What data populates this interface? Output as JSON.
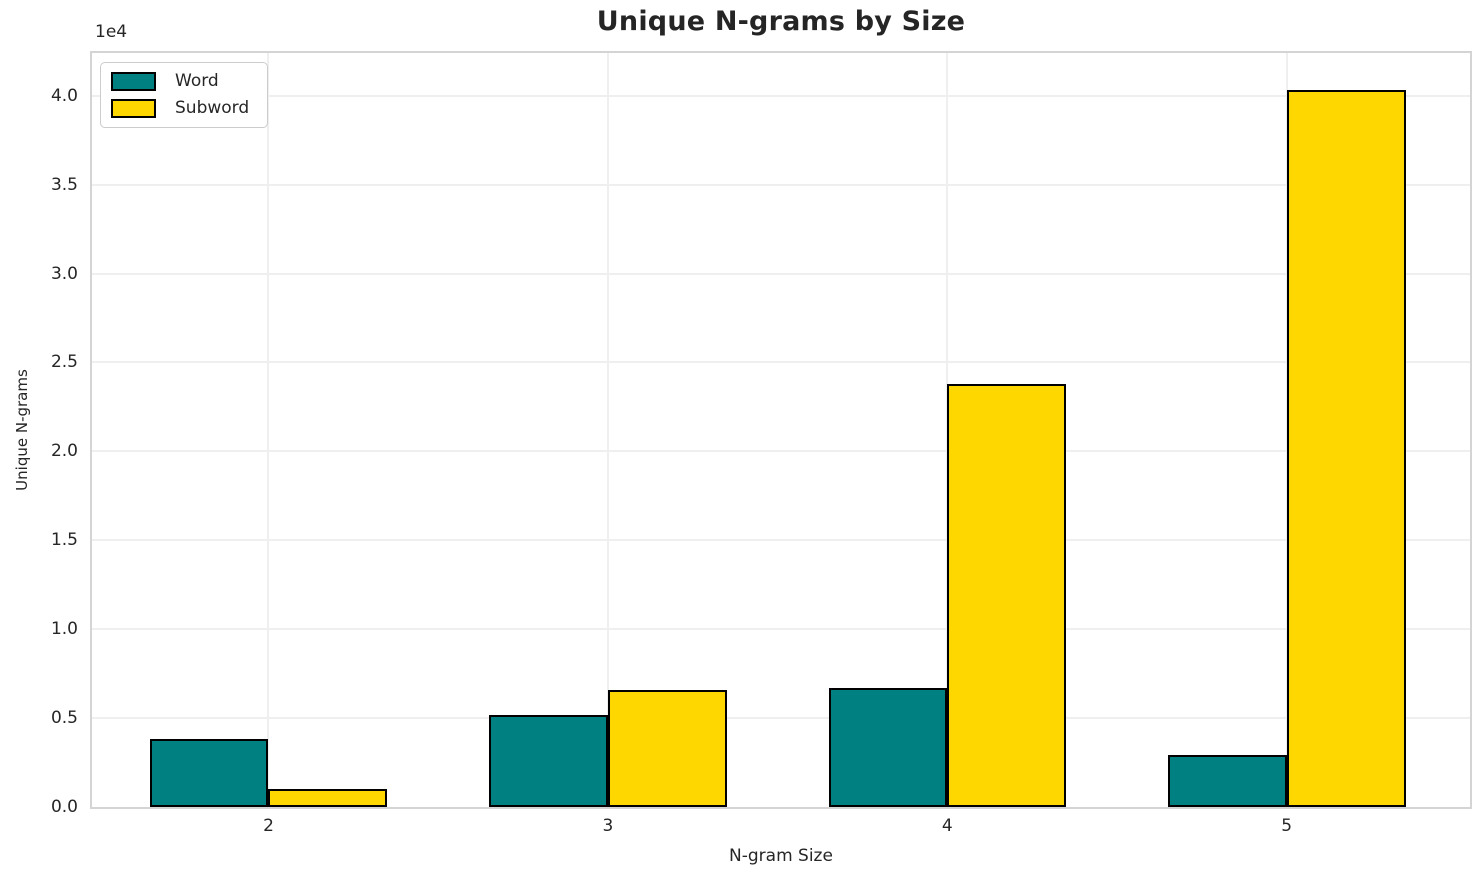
{
  "chart_data": {
    "type": "bar",
    "title": "Unique N-grams by Size",
    "xlabel": "N-gram Size",
    "ylabel": "Unique N-grams",
    "y_offset_label": "1e4",
    "categories": [
      2,
      3,
      4,
      5
    ],
    "series": [
      {
        "name": "Word",
        "color": "#008080",
        "values": [
          3800,
          5200,
          6700,
          2900
        ]
      },
      {
        "name": "Subword",
        "color": "#FFD700",
        "values": [
          1000,
          6600,
          23800,
          40300
        ]
      }
    ],
    "bar_edge_color": "#000000",
    "bar_width": 0.35,
    "xlim": [
      1.48,
      5.54
    ],
    "ylim": [
      0,
      42400
    ],
    "yticks": [
      {
        "value": 0,
        "label": "0.0"
      },
      {
        "value": 5000,
        "label": "0.5"
      },
      {
        "value": 10000,
        "label": "1.0"
      },
      {
        "value": 15000,
        "label": "1.5"
      },
      {
        "value": 20000,
        "label": "2.0"
      },
      {
        "value": 25000,
        "label": "2.5"
      },
      {
        "value": 30000,
        "label": "3.0"
      },
      {
        "value": 35000,
        "label": "3.5"
      },
      {
        "value": 40000,
        "label": "4.0"
      }
    ],
    "xticks": [
      {
        "value": 2,
        "label": "2"
      },
      {
        "value": 3,
        "label": "3"
      },
      {
        "value": 4,
        "label": "4"
      },
      {
        "value": 5,
        "label": "5"
      }
    ],
    "grid": true,
    "legend_position": "upper left"
  }
}
